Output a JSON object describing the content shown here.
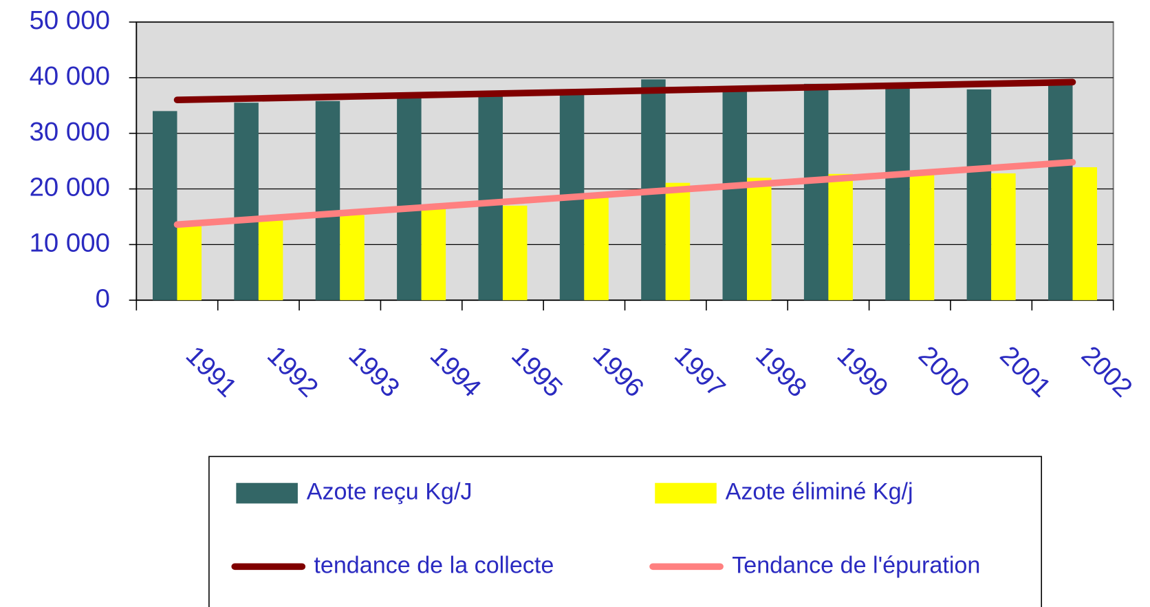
{
  "chart_data": {
    "type": "bar",
    "categories": [
      "1991",
      "1992",
      "1993",
      "1994",
      "1995",
      "1996",
      "1997",
      "1998",
      "1999",
      "2000",
      "2001",
      "2002"
    ],
    "series": [
      {
        "name": "Azote reçu Kg/J",
        "type": "bar",
        "color": "#336666",
        "values": [
          34000,
          35500,
          35800,
          36700,
          36700,
          37000,
          39700,
          38100,
          38900,
          39000,
          37900,
          38800
        ]
      },
      {
        "name": "Azote éliminé Kg/j",
        "type": "bar",
        "color": "#ffff00",
        "values": [
          13300,
          14400,
          15300,
          16400,
          17000,
          19000,
          21100,
          22000,
          22700,
          23000,
          22800,
          23900
        ]
      },
      {
        "name": "tendance de la collecte",
        "type": "line",
        "color": "#800000",
        "values": [
          36000,
          36290,
          36580,
          36870,
          37160,
          37450,
          37750,
          38040,
          38330,
          38620,
          38910,
          39200
        ]
      },
      {
        "name": "Tendance de l'épuration",
        "type": "line",
        "color": "#ff8080",
        "values": [
          13600,
          14620,
          15640,
          16650,
          17670,
          18690,
          19710,
          20730,
          21750,
          22760,
          23780,
          24800
        ]
      }
    ],
    "ylim": [
      0,
      50000
    ],
    "yticks": [
      0,
      {
        "value": 10000,
        "label": "10 000"
      },
      {
        "value": 20000,
        "label": "20 000"
      },
      {
        "value": 30000,
        "label": "30 000"
      },
      {
        "value": 40000,
        "label": "40 000"
      },
      {
        "value": 50000,
        "label": "50 000"
      }
    ],
    "grid": true,
    "legend": "bottom"
  }
}
